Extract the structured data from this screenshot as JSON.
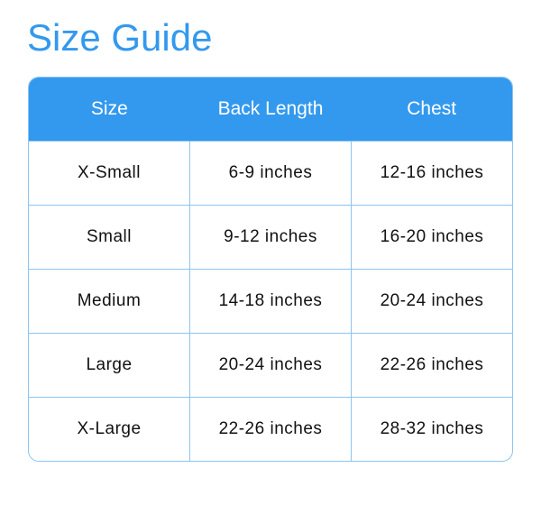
{
  "title": "Size Guide",
  "colors": {
    "accent": "#3399ee",
    "border": "#8cc4f2"
  },
  "table": {
    "headers": [
      "Size",
      "Back Length",
      "Chest"
    ],
    "rows": [
      [
        "X-Small",
        "6-9 inches",
        "12-16 inches"
      ],
      [
        "Small",
        "9-12 inches",
        "16-20 inches"
      ],
      [
        "Medium",
        "14-18 inches",
        "20-24 inches"
      ],
      [
        "Large",
        "20-24 inches",
        "22-26 inches"
      ],
      [
        "X-Large",
        "22-26 inches",
        "28-32 inches"
      ]
    ]
  }
}
